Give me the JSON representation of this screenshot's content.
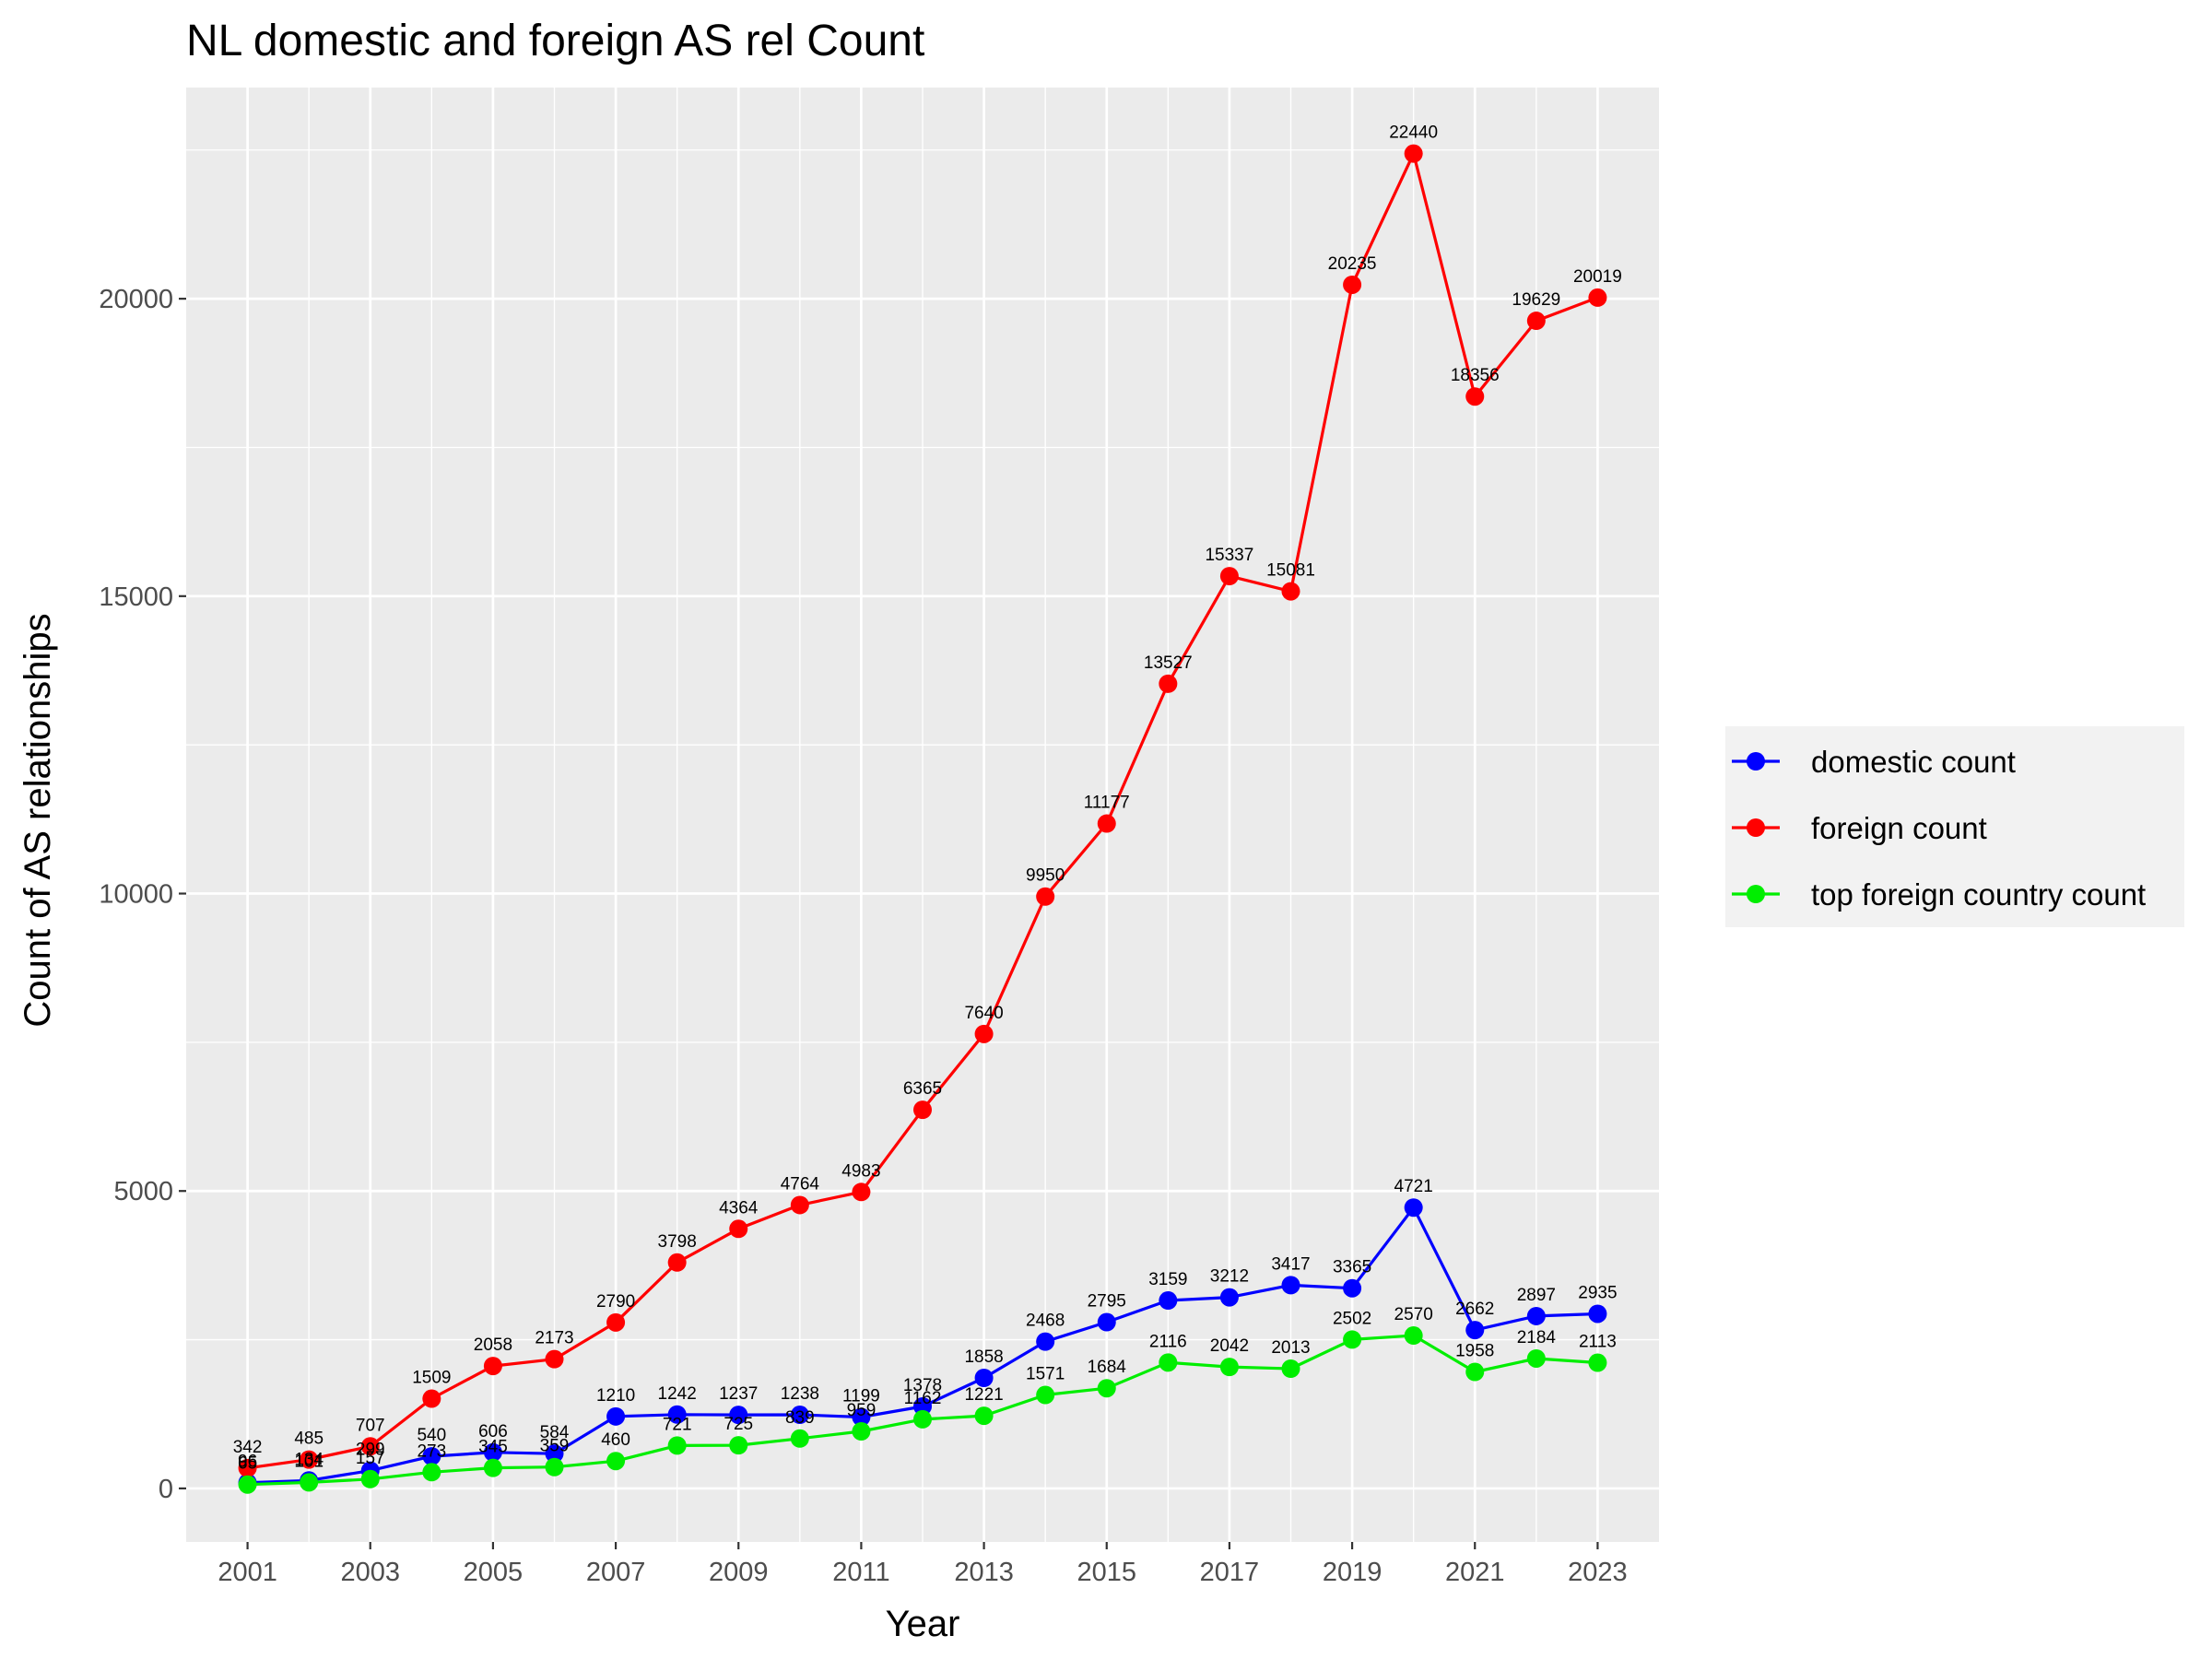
{
  "chart_data": {
    "type": "line",
    "title": "NL domestic and foreign AS rel Count",
    "xlabel": "Year",
    "ylabel": "Count of AS relationships",
    "x": [
      2001,
      2002,
      2003,
      2004,
      2005,
      2006,
      2007,
      2008,
      2009,
      2010,
      2011,
      2012,
      2013,
      2014,
      2015,
      2016,
      2017,
      2018,
      2019,
      2020,
      2021,
      2022,
      2023
    ],
    "x_ticks": [
      "2001",
      "2003",
      "2005",
      "2007",
      "2009",
      "2011",
      "2013",
      "2015",
      "2017",
      "2019",
      "2021",
      "2023"
    ],
    "y_ticks": [
      "0",
      "5000",
      "10000",
      "15000",
      "20000"
    ],
    "xlim": [
      2000,
      2024
    ],
    "ylim": [
      -900,
      23550
    ],
    "grid": true,
    "legend_position": "right",
    "series": [
      {
        "name": "domestic count",
        "color": "#0000ff",
        "values": [
          96,
          134,
          299,
          540,
          606,
          584,
          1210,
          1242,
          1237,
          1238,
          1199,
          1378,
          1858,
          2468,
          2795,
          3159,
          3212,
          3417,
          3365,
          4721,
          2662,
          2897,
          2935
        ]
      },
      {
        "name": "foreign count",
        "color": "#ff0000",
        "values": [
          342,
          485,
          707,
          1509,
          2058,
          2173,
          2790,
          3798,
          4364,
          4764,
          4983,
          6365,
          7640,
          9950,
          11177,
          13527,
          15337,
          15081,
          20235,
          22440,
          18356,
          19629,
          20019
        ]
      },
      {
        "name": "top foreign country count",
        "color": "#00ee00",
        "values": [
          65,
          101,
          157,
          273,
          345,
          359,
          460,
          721,
          725,
          839,
          959,
          1162,
          1221,
          1571,
          1684,
          2116,
          2042,
          2013,
          2502,
          2570,
          1958,
          2184,
          2113
        ]
      }
    ]
  }
}
